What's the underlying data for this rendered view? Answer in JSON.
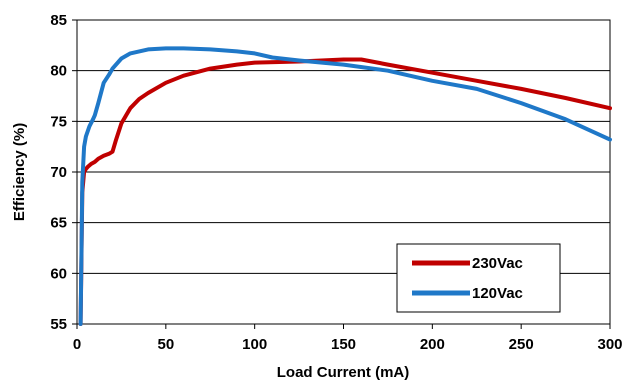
{
  "chart_data": {
    "type": "line",
    "title": "",
    "xlabel": "Load Current (mA)",
    "ylabel": "Efficiency (%)",
    "xlim": [
      0,
      300
    ],
    "ylim": [
      55,
      85
    ],
    "xticks": [
      "0",
      "50",
      "100",
      "150",
      "200",
      "250",
      "300"
    ],
    "yticks": [
      "55",
      "60",
      "65",
      "70",
      "75",
      "80",
      "85"
    ],
    "grid": "horizontal",
    "legend_position": "bottom-right",
    "series": [
      {
        "name": "230Vac",
        "color": "#c00000",
        "x": [
          2,
          3,
          4,
          5,
          6,
          8,
          10,
          12,
          15,
          18,
          20,
          22,
          25,
          30,
          35,
          40,
          50,
          60,
          75,
          90,
          100,
          125,
          150,
          160,
          175,
          200,
          225,
          250,
          275,
          300
        ],
        "y": [
          55,
          68,
          70,
          70.3,
          70.5,
          70.8,
          71.0,
          71.3,
          71.6,
          71.8,
          72.0,
          73.2,
          74.8,
          76.3,
          77.2,
          77.8,
          78.8,
          79.5,
          80.2,
          80.6,
          80.8,
          80.9,
          81.1,
          81.1,
          80.6,
          79.8,
          79.0,
          78.2,
          77.3,
          76.3
        ]
      },
      {
        "name": "120Vac",
        "color": "#1f78c8",
        "x": [
          2,
          3,
          4,
          5,
          7,
          9,
          10,
          12,
          15,
          18,
          20,
          25,
          30,
          40,
          50,
          60,
          75,
          90,
          100,
          110,
          125,
          150,
          175,
          200,
          225,
          250,
          275,
          300
        ],
        "y": [
          55,
          69,
          72.5,
          73.5,
          74.5,
          75.2,
          75.6,
          76.8,
          78.8,
          79.6,
          80.2,
          81.2,
          81.7,
          82.1,
          82.2,
          82.2,
          82.1,
          81.9,
          81.7,
          81.3,
          81.0,
          80.6,
          80.0,
          79.0,
          78.2,
          76.8,
          75.2,
          73.2
        ]
      }
    ]
  }
}
